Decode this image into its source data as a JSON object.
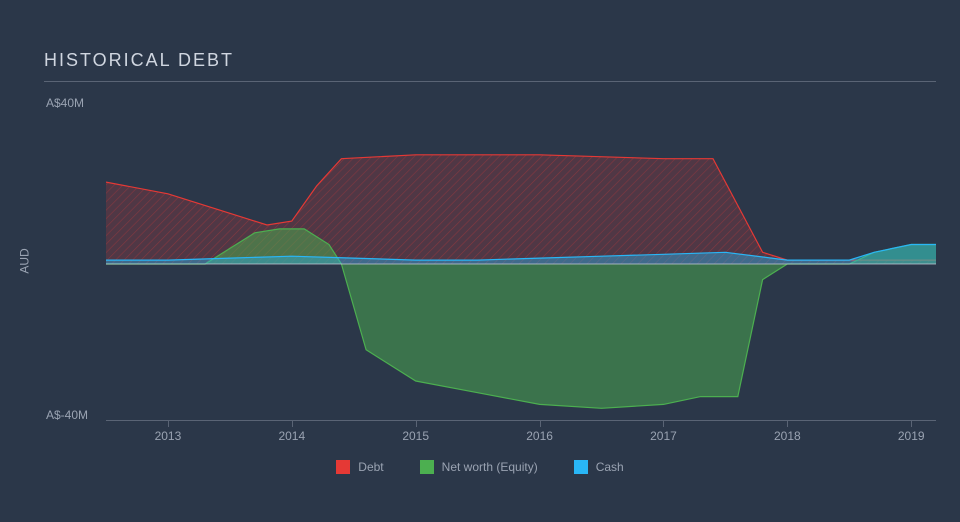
{
  "chart": {
    "type": "area",
    "title": "HISTORICAL DEBT",
    "background_color": "#2b3749",
    "title_color": "#d0d6e0",
    "title_fontsize": 18,
    "axis_label": "AUD",
    "label_fontsize": 12,
    "label_color": "#9aa3b2",
    "grid_color": "#5a6475",
    "xlim": [
      2012.5,
      2019.2
    ],
    "ylim": [
      -40,
      40
    ],
    "yticks": [
      {
        "value": 40,
        "label": "A$40M"
      },
      {
        "value": -40,
        "label": "A$-40M"
      }
    ],
    "xticks": [
      {
        "value": 2013,
        "label": "2013"
      },
      {
        "value": 2014,
        "label": "2014"
      },
      {
        "value": 2015,
        "label": "2015"
      },
      {
        "value": 2016,
        "label": "2016"
      },
      {
        "value": 2017,
        "label": "2017"
      },
      {
        "value": 2018,
        "label": "2018"
      },
      {
        "value": 2019,
        "label": "2019"
      }
    ],
    "series": [
      {
        "name": "Debt",
        "stroke": "#e53935",
        "fill": "#e53935",
        "fill_opacity": 0.28,
        "hatch": true,
        "stroke_width": 1.2,
        "x": [
          2012.5,
          2013.0,
          2013.5,
          2013.8,
          2014.0,
          2014.2,
          2014.4,
          2015.0,
          2016.0,
          2017.0,
          2017.4,
          2017.6,
          2017.8,
          2018.0,
          2018.5,
          2019.0,
          2019.2
        ],
        "y": [
          21,
          18,
          13,
          10,
          11,
          20,
          27,
          28,
          28,
          27,
          27,
          15,
          3,
          1,
          1,
          1,
          1
        ]
      },
      {
        "name": "Net worth (Equity)",
        "stroke": "#4caf50",
        "fill": "#4caf50",
        "fill_opacity": 0.5,
        "hatch": false,
        "stroke_width": 1.2,
        "x": [
          2012.5,
          2013.3,
          2013.5,
          2013.7,
          2013.9,
          2014.1,
          2014.3,
          2014.4,
          2014.6,
          2015.0,
          2015.5,
          2016.0,
          2016.5,
          2017.0,
          2017.3,
          2017.6,
          2017.8,
          2018.0,
          2018.5,
          2018.7,
          2019.0,
          2019.2
        ],
        "y": [
          0,
          0,
          4,
          8,
          9,
          9,
          5,
          0,
          -22,
          -30,
          -33,
          -36,
          -37,
          -36,
          -34,
          -34,
          -4,
          0,
          0,
          3,
          5,
          5
        ]
      },
      {
        "name": "Cash",
        "stroke": "#29b6f6",
        "fill": "#29b6f6",
        "fill_opacity": 0.4,
        "hatch": false,
        "stroke_width": 1.2,
        "x": [
          2012.5,
          2013.0,
          2013.5,
          2014.0,
          2014.5,
          2015.0,
          2015.5,
          2016.0,
          2016.5,
          2017.0,
          2017.5,
          2018.0,
          2018.5,
          2018.7,
          2019.0,
          2019.2
        ],
        "y": [
          1,
          1,
          1.5,
          2,
          1.5,
          1,
          1,
          1.5,
          2,
          2.5,
          3,
          1,
          1,
          3,
          5,
          5
        ]
      }
    ],
    "zero_line_color": "#c5cdd8",
    "legend_position": "bottom-center"
  }
}
